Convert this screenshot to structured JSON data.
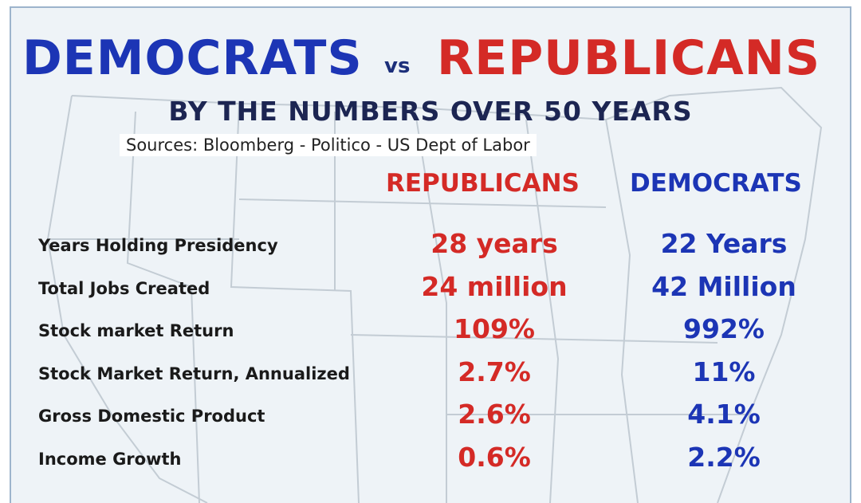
{
  "header": {
    "title_left": "DEMOCRATS",
    "title_vs": "vs",
    "title_right": "REPUBLICANS",
    "subtitle": "BY THE NUMBERS OVER 50 YEARS",
    "sources": "Sources:  Bloomberg - Politico - US Dept of Labor"
  },
  "table": {
    "columns": [
      "REPUBLICANS",
      "DEMOCRATS"
    ],
    "rows": [
      [
        "Years Holding Presidency",
        "28 years",
        "22 Years"
      ],
      [
        "Total Jobs Created",
        "24 million",
        "42 Million"
      ],
      [
        "Stock market Return",
        "109%",
        "992%"
      ],
      [
        "Stock Market Return, Annualized",
        "2.7%",
        "11%"
      ],
      [
        "Gross Domestic Product",
        "2.6%",
        "4.1%"
      ],
      [
        "Income Growth",
        "0.6%",
        "2.2%"
      ]
    ]
  }
}
